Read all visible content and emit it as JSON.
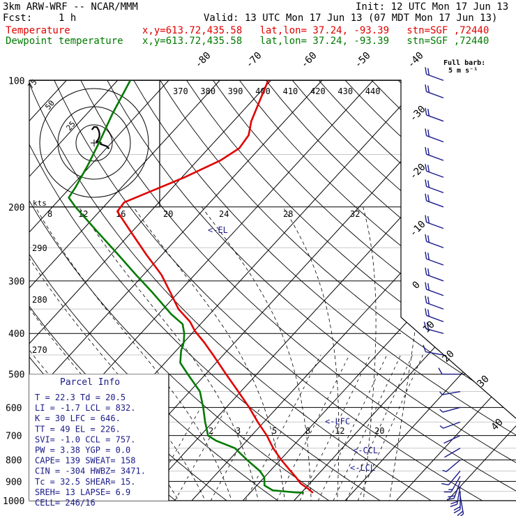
{
  "header": {
    "model": "3km ARW-WRF -- NCAR/MMM",
    "init": "Init: 12 UTC Mon 17 Jun 13",
    "fcst_label": "Fcst:",
    "fcst_value": "1 h",
    "valid": "Valid: 13 UTC Mon 17 Jun 13 (07 MDT Mon 17 Jun 13)",
    "temperature_label": "Temperature",
    "dewpoint_label": "Dewpoint temperature",
    "location": "x,y=613.72,435.58   lat,lon= 37.24, -93.39   stn=SGF ,72440",
    "barb_legend_title": "Full barb:",
    "barb_legend_value": "5 m s⁻¹"
  },
  "colors": {
    "temperature": "#e00000",
    "dewpoint": "#007a00",
    "isotherm": "#000000",
    "wind": "#1a1a8a",
    "annotation": "#1a1a8a"
  },
  "chart_data": {
    "type": "line",
    "y_scale": "log pressure (hPa)",
    "ylim": [
      1000,
      100
    ],
    "pressure_ticks": [
      100,
      200,
      300,
      400,
      500,
      600,
      700,
      800,
      900,
      1000
    ],
    "isotherm_labels_c": [
      -80,
      -70,
      -60,
      -50,
      -40,
      -30,
      -20,
      -10,
      0,
      10,
      20,
      30,
      40
    ],
    "theta_e_labels_k": [
      370,
      380,
      390,
      400,
      410,
      420,
      430,
      440
    ],
    "theta_labels_k": [
      290,
      280,
      270
    ],
    "mixing_ratio_upper_labels": [
      8,
      12,
      16,
      20,
      24,
      28,
      32
    ],
    "mixing_ratio_lower_labels": [
      2,
      3,
      5,
      8,
      12,
      20
    ],
    "temperature_profile": {
      "name": "Temperature",
      "pressure_hpa": [
        958,
        935,
        910,
        880,
        850,
        800,
        750,
        700,
        650,
        600,
        550,
        500,
        450,
        420,
        395,
        375,
        350,
        320,
        290,
        260,
        230,
        205,
        195,
        185,
        170,
        155,
        145,
        135,
        125,
        112,
        100
      ],
      "temperature_c": [
        22.3,
        20.5,
        18.2,
        16.2,
        14.0,
        10.2,
        6.5,
        3.0,
        -1.2,
        -5.5,
        -10.5,
        -16.0,
        -22.0,
        -26.0,
        -29.8,
        -32.5,
        -37.0,
        -41.5,
        -46.5,
        -53.0,
        -60.0,
        -66.5,
        -66.8,
        -64.0,
        -59.5,
        -55.5,
        -54.0,
        -54.5,
        -56.5,
        -58.5,
        -60.5
      ]
    },
    "dewpoint_profile": {
      "name": "Dewpoint temperature",
      "pressure_hpa": [
        958,
        955,
        945,
        920,
        880,
        850,
        800,
        750,
        720,
        700,
        650,
        600,
        550,
        500,
        470,
        440,
        420,
        400,
        380,
        360,
        320,
        290,
        260,
        230,
        200,
        190,
        180,
        160,
        140,
        120,
        100
      ],
      "dewpoint_c": [
        20.5,
        18.5,
        14.0,
        11.5,
        10.0,
        8.0,
        3.5,
        -1.0,
        -6.0,
        -8.5,
        -11.5,
        -14.5,
        -18.0,
        -23.5,
        -27.0,
        -29.0,
        -30.0,
        -31.5,
        -33.5,
        -37.5,
        -45.0,
        -51.5,
        -58.5,
        -66.5,
        -75.5,
        -78.5,
        -79.0,
        -80.5,
        -82.5,
        -85.0,
        -87.5
      ]
    },
    "wind_barbs": {
      "pressure_hpa": [
        975,
        950,
        925,
        900,
        875,
        850,
        800,
        750,
        700,
        650,
        600,
        550,
        500,
        450,
        400,
        375,
        350,
        325,
        300,
        275,
        250,
        225,
        200,
        185,
        170,
        155,
        140,
        125,
        110,
        100
      ],
      "direction_deg": [
        170,
        180,
        190,
        200,
        210,
        220,
        230,
        240,
        245,
        250,
        255,
        260,
        270,
        280,
        285,
        290,
        290,
        290,
        290,
        290,
        290,
        290,
        290,
        290,
        290,
        290,
        290,
        290,
        290,
        290
      ],
      "speed_ms": [
        10,
        12,
        12,
        10,
        8,
        6,
        4,
        2,
        2,
        3,
        3,
        4,
        5,
        5,
        10,
        11,
        12,
        12,
        12,
        12,
        12,
        12,
        12,
        12,
        12,
        12,
        12,
        12,
        12,
        12
      ]
    },
    "hodograph_speed_rings": [
      25,
      50,
      75
    ],
    "hodograph_label": "kts",
    "levels": [
      {
        "label": "<-EL",
        "pressure_hpa": 226
      },
      {
        "label": "<-LFC",
        "pressure_hpa": 646
      },
      {
        "label": "<-CCL",
        "pressure_hpa": 757
      },
      {
        "label": "<-LCL",
        "pressure_hpa": 832
      }
    ]
  },
  "parcel_info": {
    "title": "Parcel Info",
    "rows": [
      "T  =    22.3  Td  =  20.5",
      "LI =    -1.7  LCL =  832.",
      "K  =      30  LFC =  646.",
      "TT =      49  EL  =  226.",
      "SVI=    -1.0  CCL =  757.",
      "PW =    3.38  YGP =   0.0",
      "CAPE=    139  SWEAT=  158",
      "CIN =   -304  HWBZ= 3471.",
      "Tc  =   32.5  SHEAR=  15.",
      "SREH=     13  LAPSE=  6.9",
      "CELL= 246/16"
    ]
  }
}
